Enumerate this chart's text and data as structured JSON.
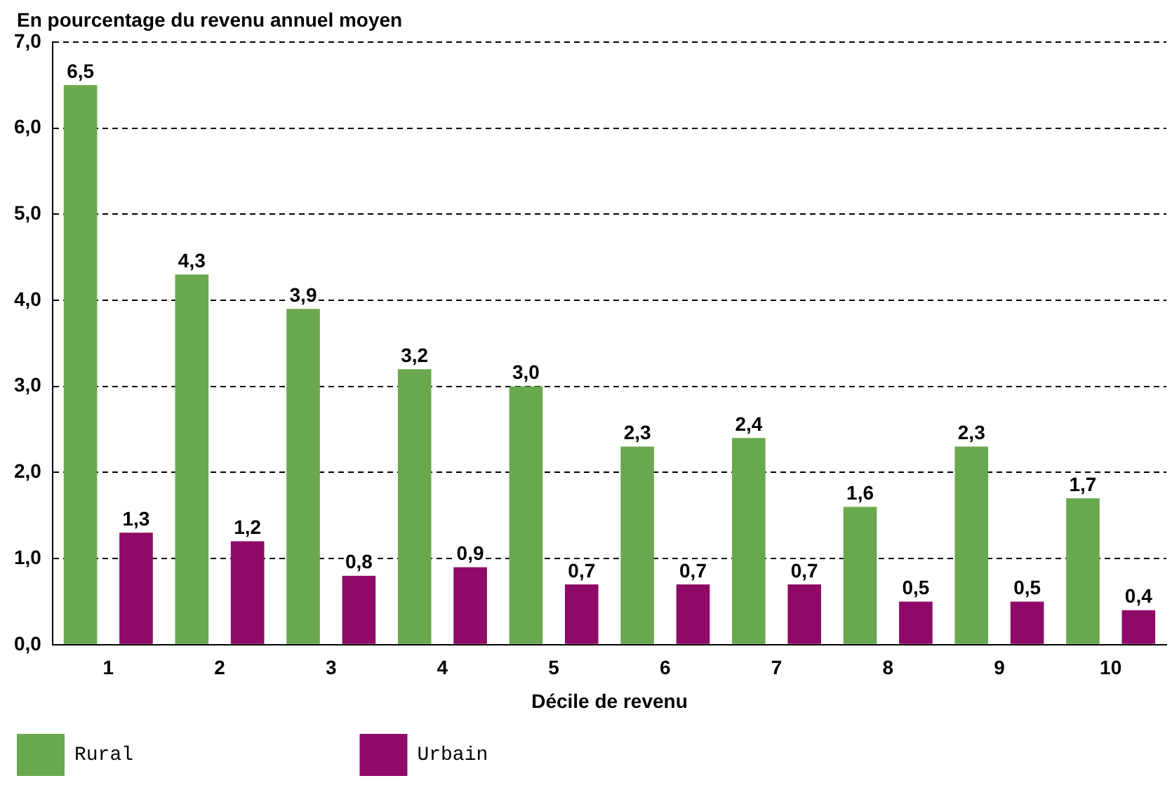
{
  "chart_data": {
    "type": "bar",
    "ylabel": "En pourcentage du revenu annuel moyen",
    "xlabel": "Décile de revenu",
    "categories": [
      "1",
      "2",
      "3",
      "4",
      "5",
      "6",
      "7",
      "8",
      "9",
      "10"
    ],
    "series": [
      {
        "name": "Rural",
        "color": "#6aa84f",
        "values": [
          6.5,
          4.3,
          3.9,
          3.2,
          3.0,
          2.3,
          2.4,
          1.6,
          2.3,
          1.7
        ],
        "value_labels": [
          "6,5",
          "4,3",
          "3,9",
          "3,2",
          "3,0",
          "2,3",
          "2,4",
          "1,6",
          "2,3",
          "1,7"
        ]
      },
      {
        "name": "Urbain",
        "color": "#8e0a66",
        "values": [
          1.3,
          1.2,
          0.8,
          0.9,
          0.7,
          0.7,
          0.7,
          0.5,
          0.5,
          0.4
        ],
        "value_labels": [
          "1,3",
          "1,2",
          "0,8",
          "0,9",
          "0,7",
          "0,7",
          "0,7",
          "0,5",
          "0,5",
          "0,4"
        ]
      }
    ],
    "ylim": [
      0,
      7
    ],
    "yticks": [
      {
        "value": 0,
        "label": "0,0"
      },
      {
        "value": 1,
        "label": "1,0"
      },
      {
        "value": 2,
        "label": "2,0"
      },
      {
        "value": 3,
        "label": "3,0"
      },
      {
        "value": 4,
        "label": "4,0"
      },
      {
        "value": 5,
        "label": "5,0"
      },
      {
        "value": 6,
        "label": "6,0"
      },
      {
        "value": 7,
        "label": "7,0"
      }
    ],
    "grid": "y",
    "legend": "bottom left"
  }
}
